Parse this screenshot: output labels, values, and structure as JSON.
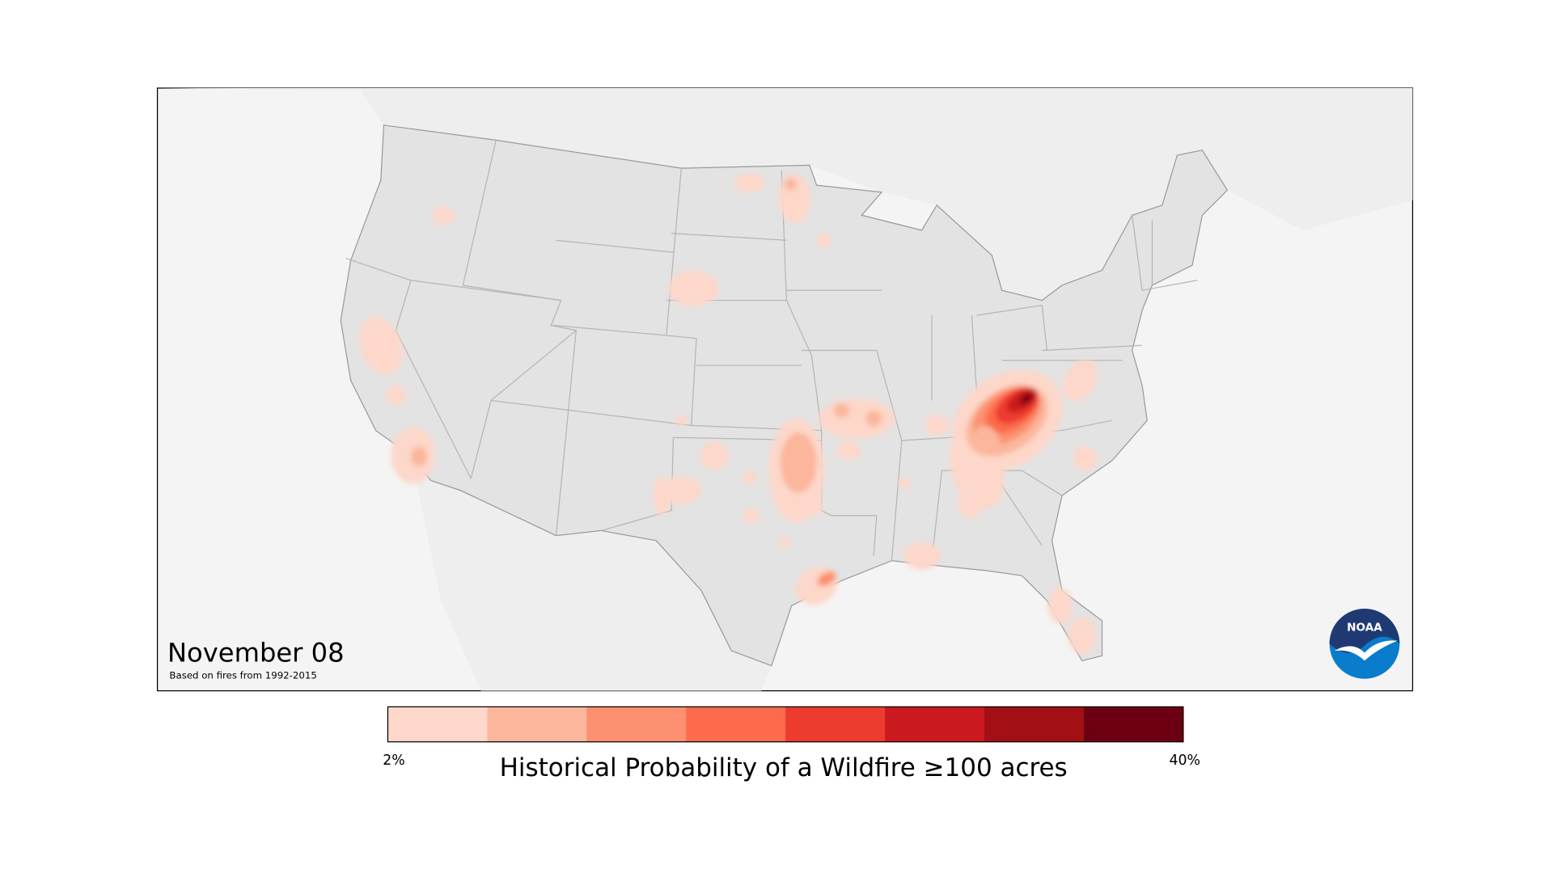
{
  "map": {
    "date_title": "November 08",
    "subtitle": "Based on fires from 1992-2015",
    "logo_text": "NOAA",
    "land_color": "#e3e3e3",
    "background_color": "#f4f4f4"
  },
  "legend": {
    "title": "Historical Probability of a Wildfire ≥100 acres",
    "min_label": "2%",
    "max_label": "40%",
    "min_value": 2,
    "max_value": 40,
    "colors": [
      "#fdd7c9",
      "#fbb69b",
      "#fc9070",
      "#fc6b4b",
      "#ee3b2f",
      "#cb1a1f",
      "#a20f15",
      "#6c0012"
    ]
  }
}
